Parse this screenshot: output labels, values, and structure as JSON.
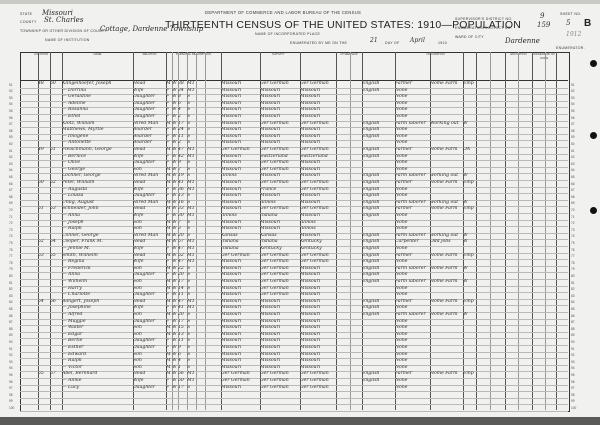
{
  "header": {
    "department": "DEPARTMENT OF COMMERCE AND LABOR BUREAU OF THE CENSUS",
    "title": "THIRTEENTH CENSUS OF THE UNITED STATES: 1910—POPULATION",
    "state_label": "STATE",
    "state": "Missouri",
    "county_label": "COUNTY",
    "county": "St. Charles",
    "township_label": "TOWNSHIP OR OTHER DIVISION OF COUNTY",
    "township": "Cottage, Dardenne Township",
    "institution_label": "NAME OF INSTITUTION",
    "place_label": "NAME OF INCORPORATED PLACE",
    "enumerated_label": "ENUMERATED BY ME ON THE",
    "enumerated_day": "21",
    "day_of_label": "DAY OF",
    "enumerated_month": "April",
    "year": "1910",
    "supervisor_label": "SUPERVISOR'S DISTRICT NO.",
    "supervisor_district": "9",
    "enumeration_label": "ENUMERATION DISTRICT NO.",
    "enumeration_district": "159",
    "ward_label": "WARD OF CITY",
    "sheet_label": "SHEET NO.",
    "sheet_no": "5",
    "sheet_side": "B",
    "enumerator_label": "ENUMERATOR.",
    "enumerator": "Dardenne",
    "stamp": "1912"
  },
  "columns": [
    "LOCATION",
    "NAME",
    "RELATION",
    "PERSONAL DESCRIPTION",
    "NATIVITY",
    "CITIZENSHIP",
    "",
    "OCCUPATION",
    "",
    "EDUCATION",
    "OWNERSHIP OF HOME",
    ""
  ],
  "rows": [
    {
      "line": "51",
      "dw": "48",
      "fam": "50",
      "name": "Klingelhoefer, Joseph",
      "rel": "Head",
      "sex": "M",
      "race": "W",
      "age": "38",
      "ms": "M1",
      "bp": "Missouri",
      "fbp": "Ger German",
      "mbp": "Ger German",
      "lang": "English",
      "occ": "Farmer",
      "ind": "Home Farm",
      "emp": "Emp"
    },
    {
      "line": "52",
      "name": "— Dorrina",
      "rel": "Wife",
      "sex": "F",
      "race": "W",
      "age": "34",
      "ms": "M1",
      "bp": "Missouri",
      "fbp": "Missouri",
      "mbp": "Missouri",
      "lang": "English",
      "occ": "None"
    },
    {
      "line": "53",
      "name": "— Geraldine",
      "rel": "Daughter",
      "sex": "F",
      "race": "W",
      "age": "8",
      "ms": "S",
      "bp": "Missouri",
      "fbp": "Missouri",
      "mbp": "Missouri",
      "occ": "None"
    },
    {
      "line": "54",
      "name": "— Adeline",
      "rel": "Daughter",
      "sex": "F",
      "race": "W",
      "age": "6",
      "ms": "S",
      "bp": "Missouri",
      "fbp": "Missouri",
      "mbp": "Missouri",
      "occ": "None"
    },
    {
      "line": "55",
      "name": "— Rosanna",
      "rel": "Daughter",
      "sex": "F",
      "race": "W",
      "age": "4",
      "ms": "S",
      "bp": "Missouri",
      "fbp": "Missouri",
      "mbp": "Missouri",
      "occ": "None"
    },
    {
      "line": "56",
      "name": "— Ethel",
      "rel": "Daughter",
      "sex": "F",
      "race": "W",
      "age": "2",
      "ms": "S",
      "bp": "Missouri",
      "fbp": "Missouri",
      "mbp": "Missouri",
      "occ": "None"
    },
    {
      "line": "57",
      "name": "Klotz, William",
      "rel": "Hired Man",
      "sex": "M",
      "race": "W",
      "age": "17",
      "ms": "S",
      "bp": "Missouri",
      "fbp": "Ger German",
      "mbp": "Ger German",
      "lang": "English",
      "occ": "Farm laborer",
      "ind": "Working out",
      "emp": "W"
    },
    {
      "line": "58",
      "name": "Matthews, Myrtle",
      "rel": "Boarder",
      "sex": "F",
      "race": "W",
      "age": "24",
      "ms": "S",
      "bp": "Missouri",
      "fbp": "Missouri",
      "mbp": "Missouri",
      "lang": "English",
      "occ": "None"
    },
    {
      "line": "59",
      "name": "— Imogene",
      "rel": "Boarder",
      "sex": "F",
      "race": "W",
      "age": "11",
      "ms": "S",
      "bp": "Missouri",
      "fbp": "Missouri",
      "mbp": "Missouri",
      "lang": "English",
      "occ": "None"
    },
    {
      "line": "60",
      "name": "— Antonette",
      "rel": "Boarder",
      "sex": "F",
      "race": "W",
      "age": "2",
      "ms": "S",
      "bp": "Missouri",
      "fbp": "Missouri",
      "mbp": "Missouri",
      "occ": "None"
    },
    {
      "line": "61",
      "dw": "49",
      "fam": "51",
      "name": "Fleischmann, George",
      "rel": "Head",
      "sex": "M",
      "race": "W",
      "age": "47",
      "ms": "M1",
      "bp": "Ger German",
      "fbp": "Ger German",
      "mbp": "Ger German",
      "lang": "English",
      "occ": "Farmer",
      "ind": "Home Farm",
      "emp": "OA"
    },
    {
      "line": "62",
      "name": "— Bernice",
      "rel": "Wife",
      "sex": "F",
      "race": "W",
      "age": "42",
      "ms": "M1",
      "bp": "Missouri",
      "fbp": "Switzerland",
      "mbp": "Switzerland",
      "lang": "English",
      "occ": "None"
    },
    {
      "line": "63",
      "name": "— Olive",
      "rel": "Daughter",
      "sex": "F",
      "race": "W",
      "age": "9",
      "ms": "S",
      "bp": "Missouri",
      "fbp": "Ger German",
      "mbp": "Missouri",
      "occ": "None"
    },
    {
      "line": "64",
      "name": "— George",
      "rel": "Son",
      "sex": "M",
      "race": "W",
      "age": "7",
      "ms": "S",
      "bp": "Missouri",
      "fbp": "Ger German",
      "mbp": "Missouri",
      "occ": "None"
    },
    {
      "line": "65",
      "name": "Lochner, George",
      "rel": "Hired Man",
      "sex": "M",
      "race": "W",
      "age": "19",
      "ms": "S",
      "bp": "Illinois",
      "fbp": "Missouri",
      "mbp": "Missouri",
      "lang": "English",
      "occ": "Farm laborer",
      "ind": "working out",
      "emp": "W"
    },
    {
      "line": "66",
      "dw": "50",
      "fam": "52",
      "name": "Peter, William",
      "rel": "Head",
      "sex": "M",
      "race": "W",
      "age": "41",
      "ms": "M1",
      "bp": "Missouri",
      "fbp": "Ger German",
      "mbp": "Ger German",
      "lang": "English",
      "occ": "Farmer",
      "ind": "Home Farm",
      "emp": "Emp"
    },
    {
      "line": "67",
      "name": "— Augusta",
      "rel": "Wife",
      "sex": "F",
      "race": "W",
      "age": "36",
      "ms": "M1",
      "bp": "Missouri",
      "fbp": "France",
      "mbp": "Ger German",
      "lang": "English",
      "occ": "None"
    },
    {
      "line": "68",
      "name": "— Louisa",
      "rel": "Daughter",
      "sex": "F",
      "race": "W",
      "age": "13",
      "ms": "S",
      "bp": "Missouri",
      "fbp": "Missouri",
      "mbp": "Missouri",
      "lang": "English",
      "occ": "None"
    },
    {
      "line": "69",
      "name": "Uhlig, August",
      "rel": "Hired Man",
      "sex": "M",
      "race": "W",
      "age": "16",
      "ms": "S",
      "bp": "Missouri",
      "fbp": "Illinois",
      "mbp": "Missouri",
      "lang": "English",
      "occ": "Farm laborer",
      "ind": "working out",
      "emp": "W"
    },
    {
      "line": "70",
      "dw": "51",
      "fam": "53",
      "name": "Schneider, John",
      "rel": "Head",
      "sex": "M",
      "race": "W",
      "age": "33",
      "ms": "M1",
      "bp": "Missouri",
      "fbp": "Ger German",
      "mbp": "Ger German",
      "lang": "English",
      "occ": "Farmer",
      "ind": "Home Farm",
      "emp": "Emp"
    },
    {
      "line": "71",
      "name": "— Anna",
      "rel": "Wife",
      "sex": "F",
      "race": "W",
      "age": "30",
      "ms": "M1",
      "bp": "Illinois",
      "fbp": "Indiana",
      "mbp": "Missouri",
      "lang": "English",
      "occ": "None"
    },
    {
      "line": "72",
      "name": "— Joseph",
      "rel": "Son",
      "sex": "M",
      "race": "W",
      "age": "7",
      "ms": "S",
      "bp": "Missouri",
      "fbp": "Missouri",
      "mbp": "Illinois",
      "occ": "None"
    },
    {
      "line": "73",
      "name": "— Ralph",
      "rel": "Son",
      "sex": "M",
      "race": "W",
      "age": "3",
      "ms": "S",
      "bp": "Missouri",
      "fbp": "Missouri",
      "mbp": "Illinois",
      "occ": "None"
    },
    {
      "line": "74",
      "name": "Conner, George",
      "rel": "Hired Man",
      "sex": "M",
      "race": "W",
      "age": "20",
      "ms": "S",
      "bp": "Kansas",
      "fbp": "Kansas",
      "mbp": "Missouri",
      "lang": "English",
      "occ": "Farm laborer",
      "ind": "working out",
      "emp": "W"
    },
    {
      "line": "75",
      "dw": "52",
      "fam": "54",
      "name": "Cooper, Frank M.",
      "rel": "Head",
      "sex": "M",
      "race": "W",
      "age": "57",
      "ms": "M1",
      "bp": "Indiana",
      "fbp": "Indiana",
      "mbp": "Kentucky",
      "lang": "English",
      "occ": "Carpenter",
      "ind": "Odd jobs",
      "emp": "W"
    },
    {
      "line": "76",
      "name": "— Jennie M.",
      "rel": "Wife",
      "sex": "F",
      "race": "W",
      "age": "47",
      "ms": "M1",
      "bp": "Indiana",
      "fbp": "Kentucky",
      "mbp": "Kentucky",
      "lang": "English",
      "occ": "None"
    },
    {
      "line": "77",
      "dw": "53",
      "fam": "55",
      "name": "Smith, Wilhelm",
      "rel": "Head",
      "sex": "M",
      "race": "W",
      "age": "52",
      "ms": "M1",
      "bp": "Ger German",
      "fbp": "Ger German",
      "mbp": "Ger German",
      "lang": "English",
      "occ": "Farmer",
      "ind": "Home Farm",
      "emp": "Emp"
    },
    {
      "line": "78",
      "name": "— Regina",
      "rel": "Wife",
      "sex": "F",
      "race": "W",
      "age": "47",
      "ms": "M1",
      "bp": "Missouri",
      "fbp": "Ger German",
      "mbp": "Ger German",
      "lang": "English",
      "occ": "None"
    },
    {
      "line": "79",
      "name": "— Frederick",
      "rel": "Son",
      "sex": "M",
      "race": "W",
      "age": "22",
      "ms": "S",
      "bp": "Missouri",
      "fbp": "Ger German",
      "mbp": "Missouri",
      "lang": "English",
      "occ": "Farm laborer",
      "ind": "Home Farm",
      "emp": "W"
    },
    {
      "line": "80",
      "name": "— Anna",
      "rel": "Daughter",
      "sex": "F",
      "race": "W",
      "age": "20",
      "ms": "S",
      "bp": "Missouri",
      "fbp": "Ger German",
      "mbp": "Missouri",
      "lang": "English",
      "occ": "None"
    },
    {
      "line": "81",
      "name": "— Wilhelm",
      "rel": "Son",
      "sex": "M",
      "race": "W",
      "age": "17",
      "ms": "S",
      "bp": "Missouri",
      "fbp": "Ger German",
      "mbp": "Missouri",
      "lang": "English",
      "occ": "Farm laborer",
      "ind": "Home Farm",
      "emp": "W"
    },
    {
      "line": "82",
      "name": "— Harry",
      "rel": "Son",
      "sex": "M",
      "race": "W",
      "age": "14",
      "ms": "S",
      "bp": "Missouri",
      "fbp": "Ger German",
      "mbp": "Missouri",
      "occ": "None"
    },
    {
      "line": "83",
      "name": "— Charlotte",
      "rel": "Daughter",
      "sex": "F",
      "race": "W",
      "age": "11",
      "ms": "S",
      "bp": "Missouri",
      "fbp": "Ger German",
      "mbp": "Missouri",
      "occ": "None"
    },
    {
      "line": "84",
      "dw": "54",
      "fam": "56",
      "name": "Bangert, Joseph",
      "rel": "Head",
      "sex": "M",
      "race": "W",
      "age": "47",
      "ms": "M1",
      "bp": "Missouri",
      "fbp": "Missouri",
      "mbp": "Missouri",
      "lang": "English",
      "occ": "Farmer",
      "ind": "Home Farm",
      "emp": "Emp"
    },
    {
      "line": "85",
      "name": "— Josephine",
      "rel": "Wife",
      "sex": "F",
      "race": "W",
      "age": "41",
      "ms": "M1",
      "bp": "Missouri",
      "fbp": "Missouri",
      "mbp": "Missouri",
      "lang": "English",
      "occ": "None"
    },
    {
      "line": "86",
      "name": "— Alfred",
      "rel": "Son",
      "sex": "M",
      "race": "W",
      "age": "20",
      "ms": "S",
      "bp": "Missouri",
      "fbp": "Missouri",
      "mbp": "Missouri",
      "lang": "English",
      "occ": "Farm laborer",
      "ind": "Home Farm",
      "emp": "W"
    },
    {
      "line": "87",
      "name": "— Maggie",
      "rel": "Daughter",
      "sex": "F",
      "race": "W",
      "age": "17",
      "ms": "S",
      "bp": "Missouri",
      "fbp": "Missouri",
      "mbp": "Missouri",
      "occ": "None"
    },
    {
      "line": "88",
      "name": "— Walter",
      "rel": "Son",
      "sex": "M",
      "race": "W",
      "age": "15",
      "ms": "S",
      "bp": "Missouri",
      "fbp": "Missouri",
      "mbp": "Missouri",
      "occ": "None"
    },
    {
      "line": "89",
      "name": "— Edgar",
      "rel": "Son",
      "sex": "M",
      "race": "W",
      "age": "13",
      "ms": "S",
      "bp": "Missouri",
      "fbp": "Missouri",
      "mbp": "Missouri",
      "occ": "None"
    },
    {
      "line": "90",
      "name": "— Bertie",
      "rel": "Daughter",
      "sex": "F",
      "race": "W",
      "age": "11",
      "ms": "S",
      "bp": "Missouri",
      "fbp": "Missouri",
      "mbp": "Missouri",
      "occ": "None"
    },
    {
      "line": "91",
      "name": "— Esther",
      "rel": "Daughter",
      "sex": "F",
      "race": "W",
      "age": "9",
      "ms": "S",
      "bp": "Missouri",
      "fbp": "Missouri",
      "mbp": "Missouri",
      "occ": "None"
    },
    {
      "line": "92",
      "name": "— Edward",
      "rel": "Son",
      "sex": "M",
      "race": "W",
      "age": "6",
      "ms": "S",
      "bp": "Missouri",
      "fbp": "Missouri",
      "mbp": "Missouri",
      "occ": "None"
    },
    {
      "line": "93",
      "name": "— Ralph",
      "rel": "Son",
      "sex": "M",
      "race": "W",
      "age": "4",
      "ms": "S",
      "bp": "Missouri",
      "fbp": "Missouri",
      "mbp": "Missouri",
      "occ": "None"
    },
    {
      "line": "94",
      "name": "— Victor",
      "rel": "Son",
      "sex": "M",
      "race": "W",
      "age": "1",
      "ms": "S",
      "bp": "Missouri",
      "fbp": "Missouri",
      "mbp": "Missouri",
      "occ": "None"
    },
    {
      "line": "95",
      "dw": "55",
      "fam": "57",
      "name": "Abel, Bernhard",
      "rel": "Head",
      "sex": "M",
      "race": "W",
      "age": "56",
      "ms": "M1",
      "bp": "Ger German",
      "fbp": "Ger German",
      "mbp": "Ger German",
      "lang": "English",
      "occ": "Farmer",
      "ind": "Home Farm",
      "emp": "Emp"
    },
    {
      "line": "96",
      "name": "— Annie",
      "rel": "Wife",
      "sex": "F",
      "race": "W",
      "age": "50",
      "ms": "M1",
      "bp": "Ger German",
      "fbp": "Ger German",
      "mbp": "Ger German",
      "lang": "English",
      "occ": "None"
    },
    {
      "line": "97",
      "name": "— Lucy",
      "rel": "Daughter",
      "sex": "F",
      "race": "W",
      "age": "17",
      "ms": "S",
      "bp": "Missouri",
      "fbp": "Ger German",
      "mbp": "Ger German",
      "occ": "None"
    },
    {
      "line": "98"
    },
    {
      "line": "99"
    },
    {
      "line": "100"
    }
  ]
}
